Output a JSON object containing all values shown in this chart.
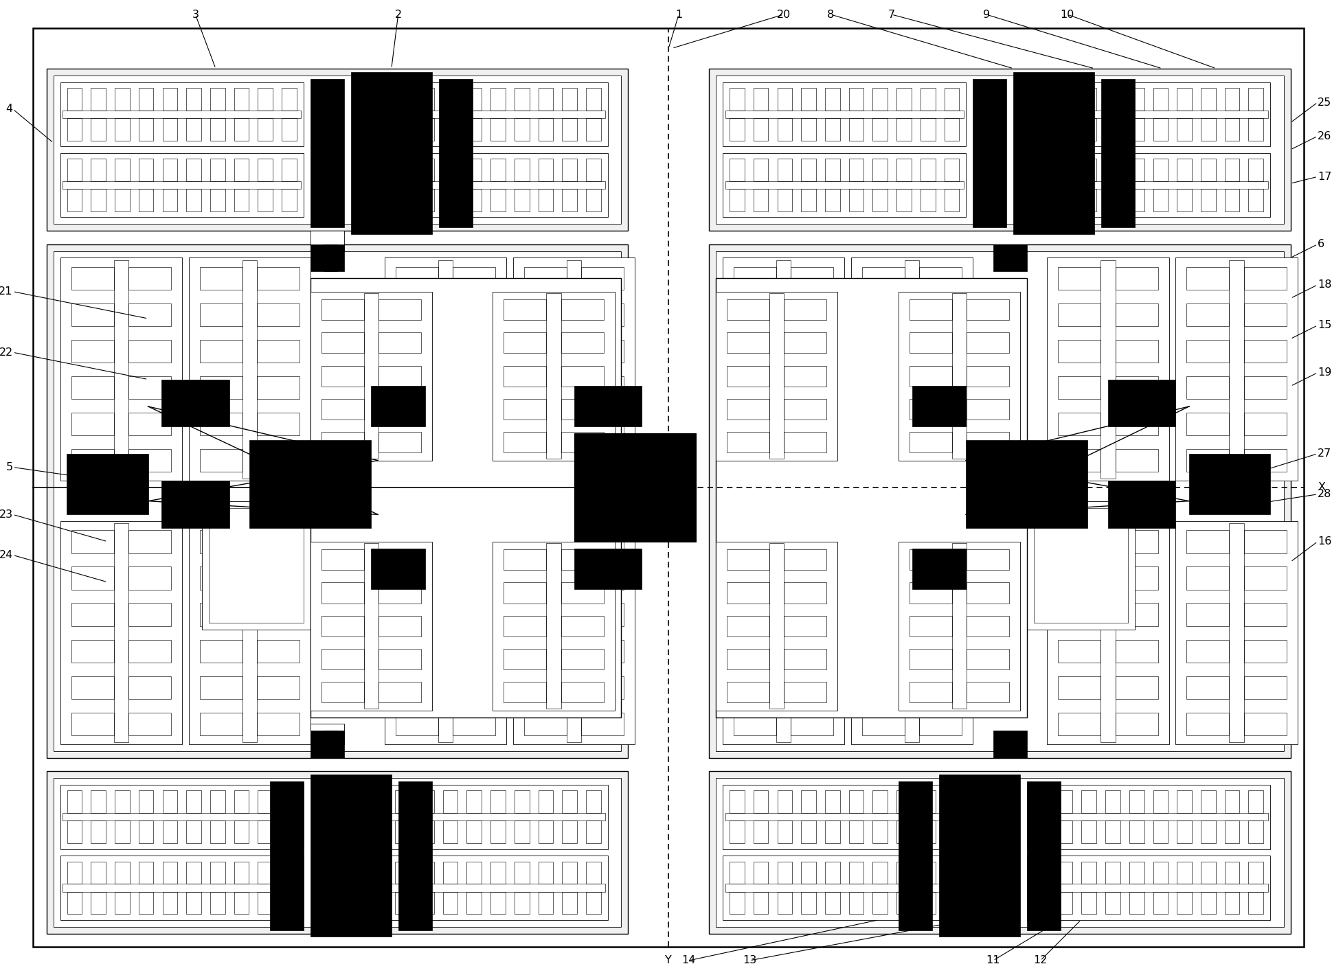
{
  "bg": "#ffffff",
  "lc": "#000000",
  "fc_b": "#000000",
  "fc_lg": "#f0f0f0",
  "fc_w": "#ffffff",
  "lw_border": 1.8,
  "lw_main": 1.0,
  "lw_thin": 0.6,
  "lw_comb": 0.45,
  "fs": 11.5
}
